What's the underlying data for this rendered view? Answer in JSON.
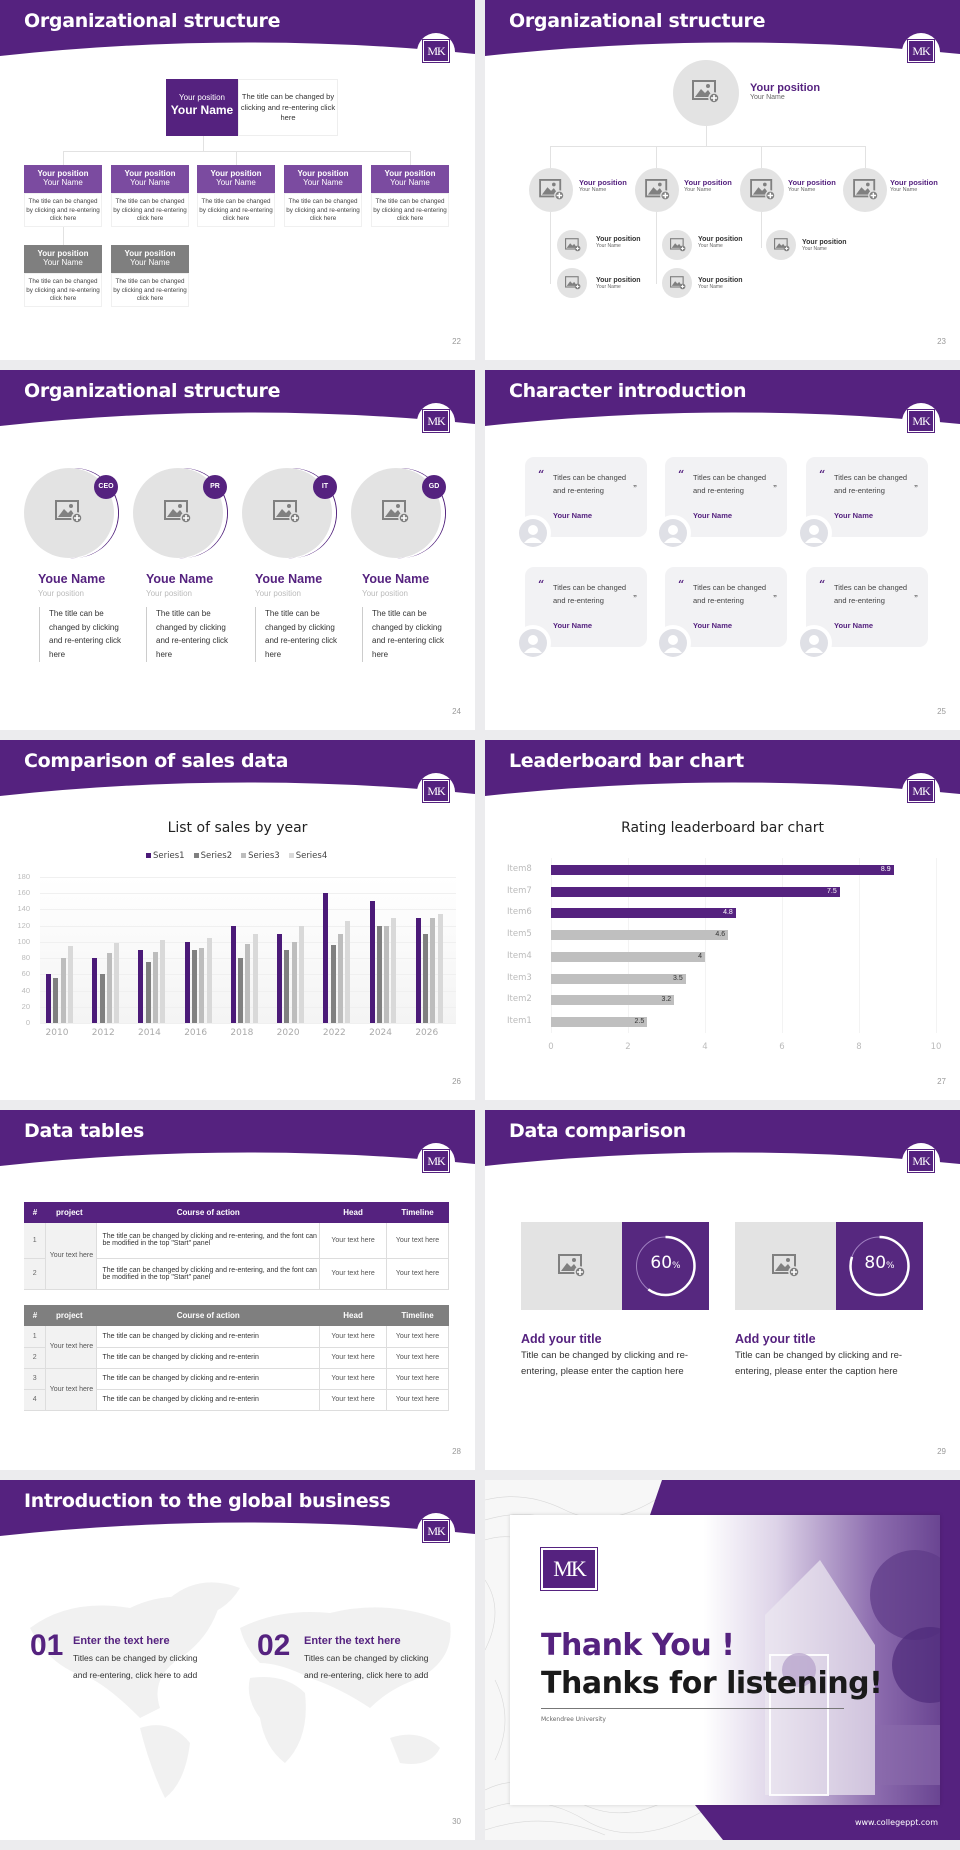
{
  "theme": {
    "primary": "#55227f",
    "accent_light": "#7b4ba0",
    "gray": "#7f7f7f",
    "placeholder": "#e3e3e3"
  },
  "logo_text": "MK",
  "slides": {
    "s22": {
      "title": "Organizational structure",
      "page": "22",
      "top": {
        "position": "Your position",
        "name": "Your Name",
        "desc": "The title can be changed by clicking and re-entering click here"
      },
      "cards": [
        {
          "position": "Your position",
          "name": "Your Name",
          "desc": "The title can be changed by clicking and re-entering click here",
          "style": "purple"
        },
        {
          "position": "Your position",
          "name": "Your Name",
          "desc": "The title can be changed by clicking and re-entering click here",
          "style": "purple"
        },
        {
          "position": "Your position",
          "name": "Your Name",
          "desc": "The title can be changed by clicking and re-entering click here",
          "style": "purple"
        },
        {
          "position": "Your position",
          "name": "Your Name",
          "desc": "The title can be changed by clicking and re-entering click here",
          "style": "purple"
        },
        {
          "position": "Your position",
          "name": "Your Name",
          "desc": "The title can be changed by clicking and re-entering click here",
          "style": "purple"
        },
        {
          "position": "Your position",
          "name": "Your Name",
          "desc": "The title can be changed by clicking and re-entering click here",
          "style": "gray"
        },
        {
          "position": "Your position",
          "name": "Your Name",
          "desc": "The title can be changed by clicking and re-entering click here",
          "style": "gray"
        }
      ]
    },
    "s23": {
      "title": "Organizational structure",
      "page": "23",
      "top": {
        "position": "Your position",
        "name": "Your Name"
      },
      "level2": [
        {
          "position": "Your position",
          "name": "Your Name"
        },
        {
          "position": "Your position",
          "name": "Your Name"
        },
        {
          "position": "Your position",
          "name": "Your Name"
        },
        {
          "position": "Your position",
          "name": "Your Name"
        }
      ],
      "level3": [
        {
          "position": "Your position",
          "name": "Your Name"
        },
        {
          "position": "Your position",
          "name": "Your Name"
        },
        {
          "position": "Your position",
          "name": "Your Name"
        },
        {
          "position": "Your position",
          "name": "Your Name"
        },
        {
          "position": "Your position",
          "name": "Your Name"
        }
      ]
    },
    "s24": {
      "title": "Organizational structure",
      "page": "24",
      "people": [
        {
          "badge": "CEO",
          "name": "Youe Name",
          "position": "Your position",
          "desc": "The title can be changed by clicking and re-entering click here"
        },
        {
          "badge": "PR",
          "name": "Youe Name",
          "position": "Your position",
          "desc": "The title can be changed by clicking and re-entering click here"
        },
        {
          "badge": "IT",
          "name": "Youe Name",
          "position": "Your position",
          "desc": "The title can be changed by clicking and re-entering click here"
        },
        {
          "badge": "GD",
          "name": "Youe Name",
          "position": "Your position",
          "desc": "The title can be changed by clicking and re-entering click here"
        }
      ]
    },
    "s25": {
      "title": "Character introduction",
      "page": "25",
      "quotes": [
        {
          "text1": "Titles can be changed",
          "text2": "and re-entering",
          "name": "Your Name"
        },
        {
          "text1": "Titles can be changed",
          "text2": "and re-entering",
          "name": "Your Name"
        },
        {
          "text1": "Titles can be changed",
          "text2": "and re-entering",
          "name": "Your Name"
        },
        {
          "text1": "Titles can be changed",
          "text2": "and re-entering",
          "name": "Your Name"
        },
        {
          "text1": "Titles can be changed",
          "text2": "and re-entering",
          "name": "Your Name"
        },
        {
          "text1": "Titles can be changed",
          "text2": "and re-entering",
          "name": "Your Name"
        }
      ]
    },
    "s26": {
      "title": "Comparison of sales data",
      "page": "26"
    },
    "s27": {
      "title": "Leaderboard bar chart",
      "page": "27"
    },
    "s28": {
      "title": "Data tables",
      "page": "28",
      "headers": [
        "#",
        "project",
        "Course of action",
        "Head",
        "Timeline"
      ],
      "table1": {
        "project": "Your text here",
        "rows": [
          {
            "num": "1",
            "action": "The title can be changed by clicking and re-entering, and the font can be modified in the top \"Start\" panel",
            "head": "Your text here",
            "timeline": "Your text here"
          },
          {
            "num": "2",
            "action": "The title can be changed by clicking and re-entering, and the font can be modified in the top \"Start\" panel",
            "head": "Your text here",
            "timeline": "Your text here"
          }
        ]
      },
      "table2": {
        "projects": [
          "Your text here",
          "Your text here"
        ],
        "rows": [
          {
            "num": "1",
            "action": "The title can be changed by clicking and re-enterin",
            "head": "Your text here",
            "timeline": "Your text here"
          },
          {
            "num": "2",
            "action": "The title can be changed by clicking and re-enterin",
            "head": "Your text here",
            "timeline": "Your text here"
          },
          {
            "num": "3",
            "action": "The title can be changed by clicking and re-enterin",
            "head": "Your text here",
            "timeline": "Your text here"
          },
          {
            "num": "4",
            "action": "The title can be changed by clicking and re-enterin",
            "head": "Your text here",
            "timeline": "Your text here"
          }
        ]
      }
    },
    "s29": {
      "title": "Data comparison",
      "page": "29",
      "items": [
        {
          "percent": 60,
          "label": "60",
          "unit": "%",
          "title": "Add your title",
          "desc": "Title can be changed by clicking and re-entering, please enter the caption here"
        },
        {
          "percent": 80,
          "label": "80",
          "unit": "%",
          "title": "Add your title",
          "desc": "Title can be changed by clicking and re-entering, please enter the caption here"
        }
      ]
    },
    "s30": {
      "title": "Introduction to the global business",
      "page": "30",
      "items": [
        {
          "num": "01",
          "title": "Enter the text here",
          "desc": "Titles can be changed by clicking and re-entering, click here to add"
        },
        {
          "num": "02",
          "title": "Enter the text here",
          "desc": "Titles can be changed by clicking and re-entering, click here to add"
        }
      ]
    },
    "s31": {
      "line1": "Thank You !",
      "line2": "Thanks for listening!",
      "university": "Mckendree University",
      "website": "www.collegeppt.com"
    }
  },
  "chart_data": [
    {
      "type": "bar",
      "title": "List of sales by year",
      "categories": [
        "2010",
        "2012",
        "2014",
        "2016",
        "2018",
        "2020",
        "2022",
        "2024",
        "2026"
      ],
      "series": [
        {
          "name": "Series1",
          "color": "#4b1a78",
          "values": [
            60,
            80,
            90,
            100,
            120,
            110,
            160,
            150,
            130
          ]
        },
        {
          "name": "Series2",
          "color": "#808080",
          "values": [
            55,
            60,
            75,
            90,
            80,
            90,
            96,
            120,
            110
          ]
        },
        {
          "name": "Series3",
          "color": "#bdbdbd",
          "values": [
            80,
            86,
            88,
            92,
            98,
            100,
            110,
            120,
            130
          ]
        },
        {
          "name": "Series4",
          "color": "#d9d9d9",
          "values": [
            95,
            99,
            102,
            105,
            110,
            120,
            126,
            130,
            135
          ]
        }
      ],
      "xlabel": "",
      "ylabel": "",
      "ylim": [
        0,
        180
      ],
      "yticks": [
        0,
        20,
        40,
        60,
        80,
        100,
        120,
        140,
        160,
        180
      ],
      "legend_position": "top",
      "grid": true
    },
    {
      "type": "bar",
      "orientation": "horizontal",
      "title": "Rating leaderboard bar chart",
      "categories": [
        "Item8",
        "Item7",
        "Item6",
        "Item5",
        "Item4",
        "Item3",
        "Item2",
        "Item1"
      ],
      "values": [
        8.9,
        7.5,
        4.8,
        4.6,
        4,
        3.5,
        3.2,
        2.5
      ],
      "colors": [
        "#55227f",
        "#55227f",
        "#55227f",
        "#bfbfbf",
        "#bfbfbf",
        "#bfbfbf",
        "#bfbfbf",
        "#bfbfbf"
      ],
      "xlim": [
        0,
        10
      ],
      "xticks": [
        0,
        2,
        4,
        6,
        8,
        10
      ],
      "data_labels": true,
      "grid": true
    }
  ]
}
